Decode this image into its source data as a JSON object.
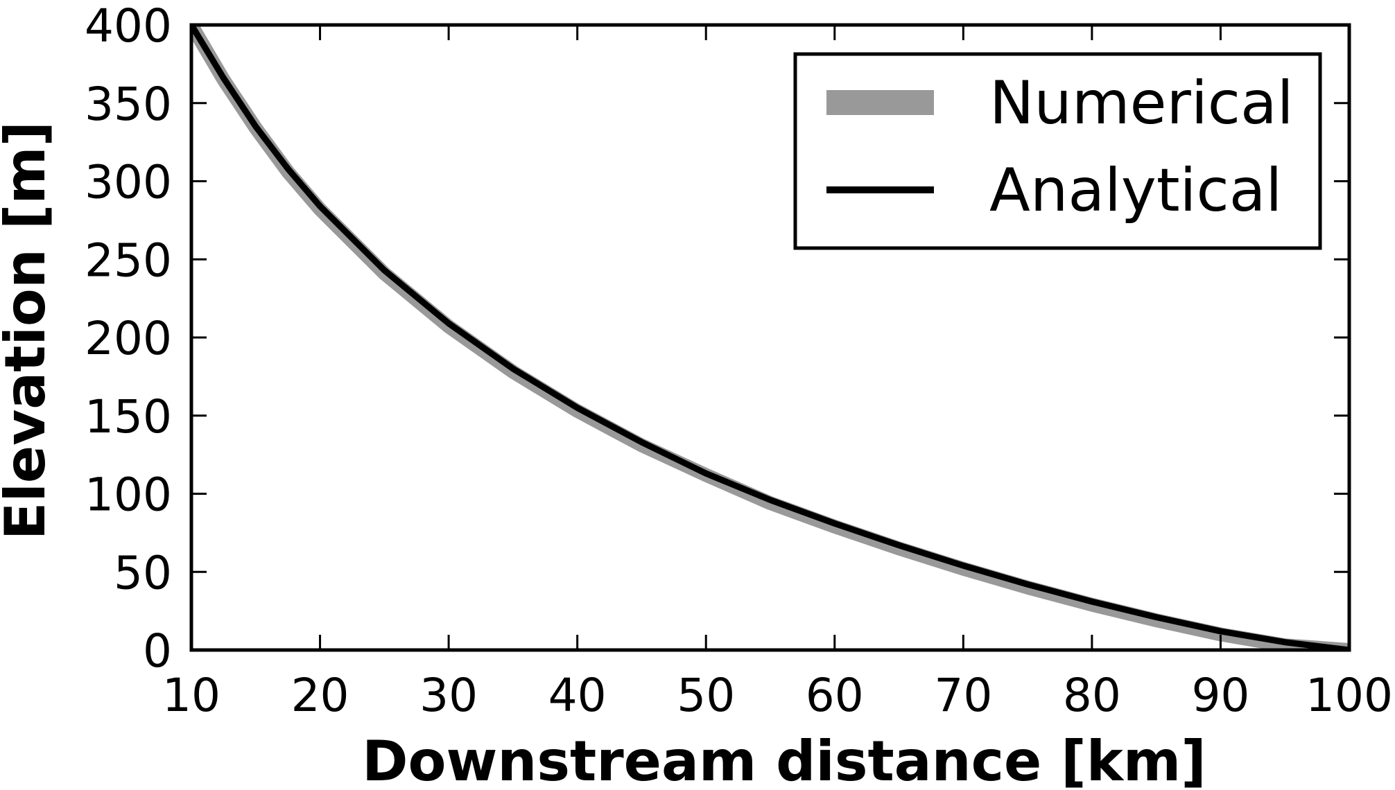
{
  "chart_data": {
    "type": "line",
    "title": "",
    "xlabel": "Downstream distance [km]",
    "ylabel": "Elevation [m]",
    "xlim": [
      10,
      100
    ],
    "ylim": [
      0,
      400
    ],
    "xticks": [
      10,
      20,
      30,
      40,
      50,
      60,
      70,
      80,
      90,
      100
    ],
    "yticks": [
      0,
      50,
      100,
      150,
      200,
      250,
      300,
      350,
      400
    ],
    "grid": false,
    "legend_position": "top-right",
    "series": [
      {
        "name": "Numerical",
        "color": "#999999",
        "style": "thick",
        "x": [
          10,
          12.5,
          15,
          17.5,
          20,
          25,
          30,
          35,
          40,
          45,
          50,
          55,
          60,
          65,
          70,
          75,
          80,
          85,
          90,
          95,
          100
        ],
        "y": [
          400,
          365,
          334,
          306,
          282,
          241,
          207,
          178,
          153,
          131,
          112,
          94,
          79,
          65,
          52,
          40,
          29,
          19,
          10,
          3,
          0
        ]
      },
      {
        "name": "Analytical",
        "color": "#000000",
        "style": "thin",
        "x": [
          10,
          12.5,
          15,
          17.5,
          20,
          25,
          30,
          35,
          40,
          45,
          50,
          55,
          60,
          65,
          70,
          75,
          80,
          85,
          90,
          95,
          100
        ],
        "y": [
          400,
          366,
          335,
          308,
          284,
          243,
          209,
          180,
          155,
          133,
          113,
          96,
          81,
          67,
          54,
          42,
          31,
          21,
          12,
          5,
          0
        ]
      }
    ]
  }
}
